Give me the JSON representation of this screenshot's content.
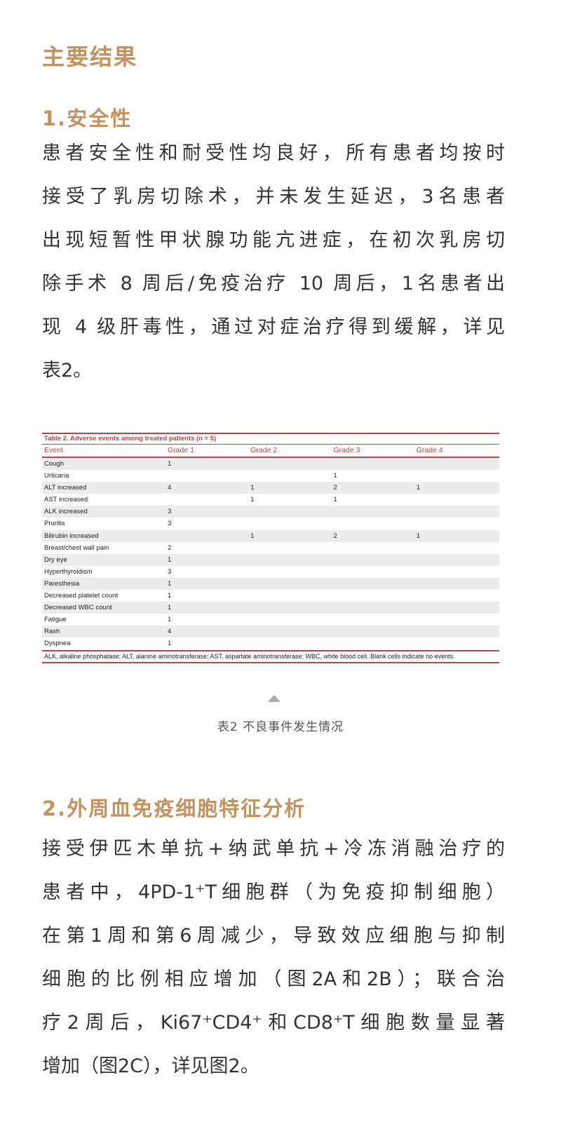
{
  "heading": "主要结果",
  "section1": {
    "title": "1.安全性",
    "lines": [
      "患者安全性和耐受性均良好，所有患者均按时",
      "接受了乳房切除术，并未发生延迟，3名患者",
      "出现短暂性甲状腺功能亢进症，在初次乳房切",
      "除手术 8 周后/免疫治疗 10 周后，1名患者出",
      "现 4 级肝毒性，通过对症治疗得到缓解，详见",
      "表2。"
    ]
  },
  "table": {
    "title": "Table 2.  Adverse events among treated patients (n = 5)",
    "columns": [
      "Event",
      "Grade 1",
      "Grade 2",
      "Grade 3",
      "Grade 4"
    ],
    "rows": [
      [
        "Cough",
        "1",
        "",
        "",
        ""
      ],
      [
        "Urticaria",
        "",
        "",
        "1",
        ""
      ],
      [
        "ALT increased",
        "4",
        "1",
        "2",
        "1"
      ],
      [
        "AST increased",
        "",
        "1",
        "1",
        ""
      ],
      [
        "ALK increased",
        "3",
        "",
        "",
        ""
      ],
      [
        "Pruritis",
        "3",
        "",
        "",
        ""
      ],
      [
        "Bilirubin increased",
        "",
        "1",
        "2",
        "1"
      ],
      [
        "Breast/chest wall pain",
        "2",
        "",
        "",
        ""
      ],
      [
        "Dry eye",
        "1",
        "",
        "",
        ""
      ],
      [
        "Hyperthyroidism",
        "3",
        "",
        "",
        ""
      ],
      [
        "Paresthesia",
        "1",
        "",
        "",
        ""
      ],
      [
        "Decreased platelet count",
        "1",
        "",
        "",
        ""
      ],
      [
        "Decreased WBC count",
        "1",
        "",
        "",
        ""
      ],
      [
        "Fatigue",
        "1",
        "",
        "",
        ""
      ],
      [
        "Rash",
        "4",
        "",
        "",
        ""
      ],
      [
        "Dyspnea",
        "1",
        "",
        "",
        ""
      ]
    ],
    "footnote": "ALK, alkaline phosphatase; ALT, alanine aminotransferase; AST, aspartate aminotransferase; WBC, white blood cell. Blank cells indicate no events.",
    "accent_color": "#b5464b"
  },
  "caption": "表2  不良事件发生情况",
  "section2": {
    "title": "2.外周血免疫细胞特征分析",
    "lines": [
      "接受伊匹木单抗+纳武单抗+冷冻消融治疗的",
      "患者中，4PD-1⁺T细胞群（为免疫抑制细胞）",
      "在第1周和第6周减少，导致效应细胞与抑制",
      "细胞的比例相应增加（图2A和2B）；联合治",
      "疗2周后，Ki67⁺CD4⁺和CD8⁺T细胞数量显著",
      "增加（图2C），详见图2。"
    ]
  },
  "heading_color": "#c4925e"
}
